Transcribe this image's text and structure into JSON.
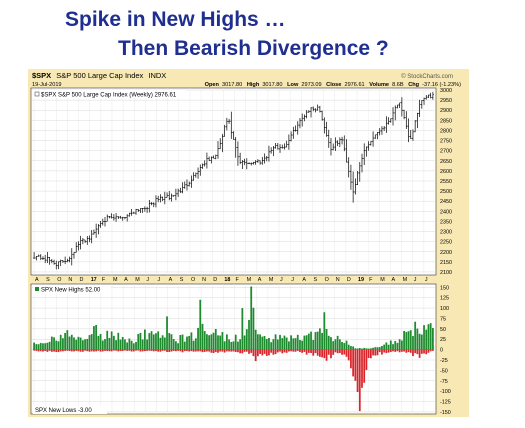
{
  "slide": {
    "title_line1": "Spike in New Highs …",
    "title_line2": "Then Bearish Divergence ?"
  },
  "chart_header": {
    "symbol": "$SPX",
    "name": "S&P 500 Large Cap Index",
    "exchange": "INDX",
    "date": "19-Jul-2019",
    "open_label": "Open",
    "open": "3017.80",
    "high_label": "High",
    "high": "3017.80",
    "low_label": "Low",
    "low": "2973.09",
    "close_label": "Close",
    "close": "2976.61",
    "volume_label": "Volume",
    "volume": "8.6B",
    "chg_label": "Chg",
    "chg": "-37.16 (-1.23%)",
    "source": "© StockCharts.com",
    "price_legend": "$SPX S&P 500 Large Cap Index (Weekly) 2976.61",
    "newhighs_legend": "SPX New Highs 52.00",
    "newlows_legend": "SPX New Lows -3.00"
  },
  "colors": {
    "frame": "#f7e8b4",
    "bar": "#000000",
    "positive": "#1e8b2e",
    "negative": "#d8262c",
    "title": "#1f2f8f"
  },
  "chart_data": [
    {
      "type": "ohlc",
      "title": "$SPX S&P 500 Large Cap Index (Weekly) 2976.61",
      "period": "weekly",
      "x_tick_labels": [
        "A",
        "S",
        "O",
        "N",
        "D",
        "17",
        "F",
        "M",
        "A",
        "M",
        "J",
        "J",
        "A",
        "S",
        "O",
        "N",
        "D",
        "18",
        "F",
        "M",
        "A",
        "M",
        "J",
        "J",
        "A",
        "S",
        "O",
        "N",
        "D",
        "19",
        "F",
        "M",
        "A",
        "M",
        "J",
        "J"
      ],
      "y_ticks": [
        2100,
        2150,
        2200,
        2250,
        2300,
        2350,
        2400,
        2450,
        2500,
        2550,
        2600,
        2650,
        2700,
        2750,
        2800,
        2850,
        2900,
        2950,
        3000
      ],
      "ylim": [
        2085,
        3010
      ],
      "close_anchors": [
        [
          "2016-08",
          2180
        ],
        [
          "2016-09",
          2165
        ],
        [
          "2016-10",
          2140
        ],
        [
          "2016-11",
          2165
        ],
        [
          "2016-12",
          2245
        ],
        [
          "2017-01",
          2275
        ],
        [
          "2017-02",
          2360
        ],
        [
          "2017-03",
          2365
        ],
        [
          "2017-04",
          2375
        ],
        [
          "2017-05",
          2410
        ],
        [
          "2017-06",
          2425
        ],
        [
          "2017-07",
          2465
        ],
        [
          "2017-08",
          2470
        ],
        [
          "2017-09",
          2510
        ],
        [
          "2017-10",
          2575
        ],
        [
          "2017-11",
          2645
        ],
        [
          "2017-12",
          2675
        ],
        [
          "2018-01",
          2860
        ],
        [
          "2018-02",
          2640
        ],
        [
          "2018-03",
          2640
        ],
        [
          "2018-04",
          2650
        ],
        [
          "2018-05",
          2715
        ],
        [
          "2018-06",
          2720
        ],
        [
          "2018-07",
          2815
        ],
        [
          "2018-08",
          2900
        ],
        [
          "2018-09",
          2915
        ],
        [
          "2018-10",
          2710
        ],
        [
          "2018-11",
          2760
        ],
        [
          "2018-12",
          2500
        ],
        [
          "2019-01",
          2705
        ],
        [
          "2019-02",
          2785
        ],
        [
          "2019-03",
          2835
        ],
        [
          "2019-04",
          2945
        ],
        [
          "2019-05",
          2750
        ],
        [
          "2019-06",
          2950
        ],
        [
          "2019-07",
          2976.61
        ]
      ],
      "last_close": 2976.61,
      "grid": true
    },
    {
      "type": "bar",
      "title": "SPX New Highs 52.00 / SPX New Lows -3.00",
      "series": [
        {
          "name": "SPX New Highs",
          "color": "#1e8b2e",
          "last": 52.0
        },
        {
          "name": "SPX New Lows",
          "color": "#d8262c",
          "last": -3.0
        }
      ],
      "anchors_highs": [
        [
          0,
          20
        ],
        [
          5,
          15
        ],
        [
          10,
          30
        ],
        [
          15,
          40
        ],
        [
          20,
          30
        ],
        [
          25,
          28
        ],
        [
          27,
          60
        ],
        [
          29,
          35
        ],
        [
          32,
          30
        ],
        [
          35,
          40
        ],
        [
          40,
          30
        ],
        [
          45,
          20
        ],
        [
          50,
          40
        ],
        [
          55,
          30
        ],
        [
          58,
          50
        ],
        [
          62,
          40
        ],
        [
          65,
          25
        ],
        [
          70,
          30
        ],
        [
          72,
          35
        ],
        [
          75,
          65
        ],
        [
          79,
          55
        ],
        [
          83,
          40
        ],
        [
          86,
          30
        ],
        [
          90,
          25
        ],
        [
          92,
          30
        ],
        [
          95,
          35
        ],
        [
          98,
          120
        ],
        [
          100,
          40
        ],
        [
          104,
          30
        ],
        [
          108,
          25
        ],
        [
          112,
          35
        ],
        [
          116,
          30
        ],
        [
          120,
          25
        ],
        [
          125,
          35
        ],
        [
          130,
          40
        ],
        [
          135,
          30
        ],
        [
          140,
          20
        ],
        [
          145,
          5
        ],
        [
          150,
          3
        ],
        [
          155,
          5
        ],
        [
          160,
          15
        ],
        [
          165,
          30
        ],
        [
          168,
          35
        ],
        [
          170,
          45
        ],
        [
          172,
          50
        ],
        [
          174,
          40
        ],
        [
          176,
          55
        ],
        [
          178,
          45
        ],
        [
          180,
          52
        ]
      ],
      "anchors_lows": [
        [
          0,
          -3
        ],
        [
          10,
          -5
        ],
        [
          20,
          -4
        ],
        [
          40,
          -3
        ],
        [
          60,
          -4
        ],
        [
          80,
          -6
        ],
        [
          96,
          -8
        ],
        [
          98,
          -10
        ],
        [
          100,
          -20
        ],
        [
          102,
          -15
        ],
        [
          106,
          -12
        ],
        [
          110,
          -8
        ],
        [
          120,
          -5
        ],
        [
          128,
          -15
        ],
        [
          132,
          -20
        ],
        [
          136,
          -10
        ],
        [
          140,
          -15
        ],
        [
          143,
          -45
        ],
        [
          145,
          -75
        ],
        [
          147,
          -148
        ],
        [
          149,
          -60
        ],
        [
          151,
          -20
        ],
        [
          155,
          -10
        ],
        [
          165,
          -5
        ],
        [
          170,
          -10
        ],
        [
          174,
          -15
        ],
        [
          176,
          -12
        ],
        [
          178,
          -8
        ],
        [
          180,
          -3
        ]
      ],
      "spikes": [
        [
          75,
          120
        ],
        [
          98,
          152
        ],
        [
          94,
          100
        ],
        [
          60,
          80
        ],
        [
          131,
          90
        ],
        [
          147,
          -148
        ],
        [
          145,
          -75
        ],
        [
          143,
          -45
        ]
      ],
      "y_ticks": [
        -150,
        -125,
        -100,
        -75,
        -50,
        -25,
        0,
        25,
        50,
        75,
        100,
        125,
        150
      ],
      "ylim": [
        -155,
        158
      ],
      "grid": true
    }
  ]
}
